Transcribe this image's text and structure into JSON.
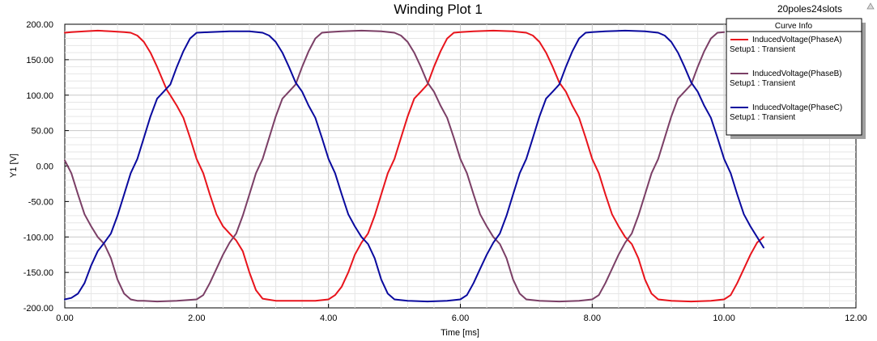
{
  "project_label": "20poles24slots",
  "legend_title": "Curve Info",
  "chart_data": {
    "type": "line",
    "title": "Winding Plot 1",
    "xlabel": "Time [ms]",
    "ylabel": "Y1 [V]",
    "xlim": [
      0,
      12
    ],
    "ylim": [
      -200,
      200
    ],
    "x_ticks": [
      "0.00",
      "2.00",
      "4.00",
      "6.00",
      "8.00",
      "10.00",
      "12.00"
    ],
    "y_ticks": [
      "200.00",
      "150.00",
      "100.00",
      "50.00",
      "0.00",
      "-50.00",
      "-100.00",
      "-150.00",
      "-200.00"
    ],
    "grid": true,
    "legend_position": "top-right",
    "series": [
      {
        "name": "InducedVoltage(PhaseA)",
        "subtitle": "Setup1 : Transient",
        "color": "#e8141c",
        "x": [
          0.0,
          0.1,
          0.3,
          0.5,
          0.7,
          0.9,
          1.0,
          1.1,
          1.2,
          1.3,
          1.4,
          1.5,
          1.55,
          1.6,
          1.7,
          1.8,
          1.9,
          2.0,
          2.1,
          2.2,
          2.3,
          2.4,
          2.5,
          2.6,
          2.7,
          2.8,
          2.9,
          3.0,
          3.2,
          3.5,
          3.8,
          4.0,
          4.1,
          4.2,
          4.3,
          4.4,
          4.5,
          4.6,
          4.7,
          4.8,
          4.9,
          5.0,
          5.1,
          5.2,
          5.3,
          5.4,
          5.5,
          5.6,
          5.7,
          5.8,
          5.9,
          6.0,
          6.2,
          6.5,
          6.8,
          7.0,
          7.1,
          7.2,
          7.3,
          7.4,
          7.5,
          7.6,
          7.7,
          7.8,
          7.9,
          8.0,
          8.1,
          8.2,
          8.3,
          8.4,
          8.5,
          8.6,
          8.7,
          8.8,
          8.9,
          9.0,
          9.2,
          9.5,
          9.8,
          10.0,
          10.1,
          10.2,
          10.3,
          10.4,
          10.5,
          10.6
        ],
        "y": [
          188,
          189,
          190,
          191,
          190,
          189,
          188,
          184,
          175,
          160,
          140,
          118,
          107,
          100,
          85,
          68,
          40,
          10,
          -10,
          -40,
          -68,
          -85,
          -95,
          -105,
          -120,
          -150,
          -175,
          -187,
          -190,
          -190,
          -190,
          -188,
          -182,
          -170,
          -150,
          -125,
          -108,
          -95,
          -70,
          -40,
          -10,
          10,
          40,
          70,
          95,
          105,
          115,
          140,
          162,
          180,
          188,
          189,
          190,
          191,
          190,
          188,
          184,
          175,
          160,
          140,
          118,
          105,
          85,
          68,
          40,
          10,
          -10,
          -40,
          -68,
          -85,
          -100,
          -110,
          -130,
          -160,
          -180,
          -188,
          -190,
          -191,
          -190,
          -188,
          -182,
          -165,
          -145,
          -125,
          -108,
          -100
        ]
      },
      {
        "name": "InducedVoltage(PhaseB)",
        "subtitle": "Setup1 : Transient",
        "color": "#7b3f66",
        "x": [
          0.0,
          0.1,
          0.2,
          0.3,
          0.4,
          0.5,
          0.6,
          0.7,
          0.8,
          0.9,
          1.0,
          1.1,
          1.2,
          1.4,
          1.7,
          2.0,
          2.1,
          2.2,
          2.3,
          2.4,
          2.5,
          2.6,
          2.7,
          2.8,
          2.9,
          3.0,
          3.1,
          3.2,
          3.3,
          3.4,
          3.5,
          3.6,
          3.7,
          3.8,
          3.9,
          4.0,
          4.2,
          4.5,
          4.8,
          5.0,
          5.1,
          5.2,
          5.3,
          5.4,
          5.5,
          5.6,
          5.7,
          5.8,
          5.9,
          6.0,
          6.1,
          6.2,
          6.3,
          6.4,
          6.5,
          6.6,
          6.7,
          6.8,
          6.9,
          7.0,
          7.2,
          7.5,
          7.8,
          8.0,
          8.1,
          8.2,
          8.3,
          8.4,
          8.5,
          8.6,
          8.7,
          8.8,
          8.9,
          9.0,
          9.1,
          9.2,
          9.3,
          9.4,
          9.5,
          9.6,
          9.7,
          9.8,
          9.9,
          10.0
        ],
        "y": [
          8,
          -10,
          -40,
          -68,
          -85,
          -100,
          -110,
          -130,
          -160,
          -180,
          -188,
          -190,
          -190,
          -191,
          -190,
          -188,
          -182,
          -165,
          -145,
          -125,
          -108,
          -95,
          -70,
          -40,
          -10,
          10,
          40,
          70,
          95,
          105,
          115,
          140,
          162,
          180,
          188,
          189,
          190,
          191,
          190,
          188,
          184,
          175,
          160,
          140,
          118,
          105,
          85,
          68,
          40,
          10,
          -10,
          -40,
          -68,
          -85,
          -100,
          -110,
          -130,
          -160,
          -180,
          -188,
          -190,
          -191,
          -190,
          -188,
          -182,
          -165,
          -145,
          -125,
          -108,
          -95,
          -70,
          -40,
          -10,
          10,
          40,
          70,
          95,
          105,
          115,
          140,
          162,
          180,
          188,
          189
        ]
      },
      {
        "name": "InducedVoltage(PhaseC)",
        "subtitle": "Setup1 : Transient",
        "color": "#0a0a9e",
        "x": [
          0.0,
          0.1,
          0.2,
          0.3,
          0.4,
          0.5,
          0.6,
          0.7,
          0.8,
          0.9,
          1.0,
          1.1,
          1.2,
          1.3,
          1.4,
          1.5,
          1.6,
          1.7,
          1.8,
          1.9,
          2.0,
          2.2,
          2.5,
          2.8,
          3.0,
          3.1,
          3.2,
          3.3,
          3.4,
          3.5,
          3.6,
          3.7,
          3.8,
          3.9,
          4.0,
          4.1,
          4.2,
          4.3,
          4.4,
          4.5,
          4.6,
          4.7,
          4.8,
          4.9,
          5.0,
          5.2,
          5.5,
          5.8,
          6.0,
          6.1,
          6.2,
          6.3,
          6.4,
          6.5,
          6.6,
          6.7,
          6.8,
          6.9,
          7.0,
          7.1,
          7.2,
          7.3,
          7.4,
          7.5,
          7.6,
          7.7,
          7.8,
          7.9,
          8.0,
          8.2,
          8.5,
          8.8,
          9.0,
          9.1,
          9.2,
          9.3,
          9.4,
          9.5,
          9.6,
          9.7,
          9.8,
          9.9,
          10.0,
          10.1,
          10.2,
          10.3,
          10.4,
          10.5,
          10.6
        ],
        "y": [
          -188,
          -186,
          -180,
          -165,
          -140,
          -120,
          -108,
          -95,
          -70,
          -40,
          -10,
          10,
          40,
          70,
          95,
          105,
          115,
          140,
          162,
          180,
          188,
          189,
          190,
          190,
          188,
          184,
          175,
          160,
          140,
          118,
          105,
          85,
          68,
          40,
          10,
          -10,
          -40,
          -68,
          -85,
          -100,
          -110,
          -130,
          -160,
          -180,
          -188,
          -190,
          -191,
          -190,
          -188,
          -182,
          -165,
          -145,
          -125,
          -108,
          -95,
          -70,
          -40,
          -10,
          10,
          40,
          70,
          95,
          105,
          115,
          140,
          162,
          180,
          188,
          189,
          190,
          191,
          190,
          188,
          184,
          175,
          160,
          140,
          118,
          105,
          85,
          68,
          40,
          10,
          -10,
          -40,
          -68,
          -85,
          -100,
          -115
        ]
      }
    ]
  }
}
